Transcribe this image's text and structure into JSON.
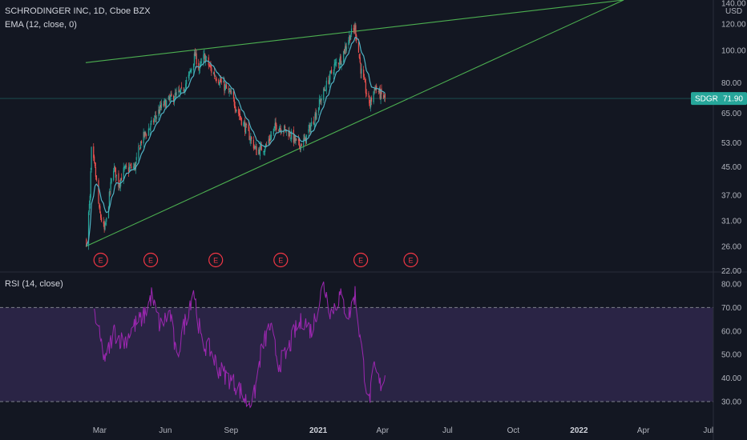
{
  "legend": {
    "title": "SCHRODINGER INC, 1D, Cboe BZX",
    "ema": "EMA (12, close, 0)",
    "rsi": "RSI (14, close)"
  },
  "price_axis": {
    "unit": "USD",
    "ticks": [
      140,
      120,
      100,
      80,
      65,
      53,
      45,
      37,
      31,
      26,
      22
    ],
    "tick_labels": [
      "140.00",
      "120.00",
      "100.00",
      "80.00",
      "65.00",
      "53.00",
      "45.00",
      "37.00",
      "31.00",
      "26.00",
      "22.00"
    ]
  },
  "rsi_axis": {
    "ticks": [
      80,
      70,
      60,
      50,
      40,
      30
    ],
    "tick_labels": [
      "80.00",
      "70.00",
      "60.00",
      "50.00",
      "40.00",
      "30.00"
    ],
    "band": [
      30,
      70
    ]
  },
  "time_axis": {
    "labels": [
      "Mar",
      "Jun",
      "Sep",
      "2021",
      "Apr",
      "Jul",
      "Oct",
      "2022",
      "Apr",
      "Jul"
    ],
    "bold": [
      "2021",
      "2022"
    ]
  },
  "last_price": {
    "symbol": "SDGR",
    "value": "71.90",
    "color": "#26a69a"
  },
  "colors": {
    "background": "#131722",
    "up": "#26a69a",
    "down": "#ef5350",
    "ema": "#4fb3c4",
    "trendline": "#4caf50",
    "rsi_line": "#9c27b0",
    "rsi_band": "#7e57c2",
    "earnings": "#f23645"
  },
  "earnings_marker": "E",
  "chart_data": [
    {
      "type": "candlestick",
      "scale": "log",
      "ylim": [
        22,
        140
      ],
      "x_range": [
        "2020-02-06",
        "2022-07-15"
      ],
      "price_anchors": [
        [
          "2020-02-07",
          27
        ],
        [
          "2020-02-12",
          36
        ],
        [
          "2020-02-14",
          50
        ],
        [
          "2020-02-19",
          44
        ],
        [
          "2020-02-25",
          33
        ],
        [
          "2020-03-03",
          29
        ],
        [
          "2020-03-06",
          31
        ],
        [
          "2020-03-16",
          45
        ],
        [
          "2020-03-23",
          40
        ],
        [
          "2020-03-31",
          44
        ],
        [
          "2020-04-15",
          45
        ],
        [
          "2020-04-24",
          54
        ],
        [
          "2020-05-08",
          60
        ],
        [
          "2020-05-22",
          68
        ],
        [
          "2020-06-05",
          72
        ],
        [
          "2020-06-19",
          75
        ],
        [
          "2020-06-29",
          83
        ],
        [
          "2020-07-08",
          97
        ],
        [
          "2020-07-14",
          88
        ],
        [
          "2020-07-21",
          96
        ],
        [
          "2020-07-31",
          87
        ],
        [
          "2020-08-14",
          80
        ],
        [
          "2020-08-28",
          73
        ],
        [
          "2020-09-11",
          62
        ],
        [
          "2020-09-23",
          55
        ],
        [
          "2020-10-02",
          50
        ],
        [
          "2020-10-16",
          52
        ],
        [
          "2020-10-30",
          60
        ],
        [
          "2020-11-16",
          57
        ],
        [
          "2020-11-30",
          52
        ],
        [
          "2020-12-09",
          54
        ],
        [
          "2020-12-22",
          63
        ],
        [
          "2021-01-04",
          75
        ],
        [
          "2021-01-19",
          90
        ],
        [
          "2021-01-29",
          95
        ],
        [
          "2021-02-10",
          111
        ],
        [
          "2021-02-17",
          117
        ],
        [
          "2021-02-25",
          88
        ],
        [
          "2021-03-04",
          76
        ],
        [
          "2021-03-10",
          69
        ],
        [
          "2021-03-17",
          78
        ],
        [
          "2021-03-24",
          74
        ],
        [
          "2021-03-31",
          71.9
        ]
      ],
      "earnings_dates": [
        "2020-02-27",
        "2020-05-07",
        "2020-08-06",
        "2020-11-05",
        "2021-02-25",
        "2021-05-06"
      ],
      "trendlines": [
        {
          "from": [
            "2020-02-06",
            92
          ],
          "to": [
            "2022-02-28",
            140
          ]
        },
        {
          "from": [
            "2020-02-06",
            26
          ],
          "to": [
            "2022-02-28",
            140
          ]
        }
      ]
    },
    {
      "type": "line",
      "name": "RSI",
      "ylim": [
        25,
        82
      ],
      "anchors": [
        [
          "2020-02-18",
          68
        ],
        [
          "2020-02-27",
          55
        ],
        [
          "2020-03-05",
          47
        ],
        [
          "2020-03-16",
          60
        ],
        [
          "2020-03-30",
          55
        ],
        [
          "2020-04-13",
          62
        ],
        [
          "2020-04-27",
          66
        ],
        [
          "2020-05-08",
          75
        ],
        [
          "2020-05-20",
          62
        ],
        [
          "2020-06-03",
          68
        ],
        [
          "2020-06-12",
          48
        ],
        [
          "2020-06-24",
          64
        ],
        [
          "2020-07-06",
          78
        ],
        [
          "2020-07-17",
          55
        ],
        [
          "2020-07-29",
          52
        ],
        [
          "2020-08-10",
          44
        ],
        [
          "2020-08-24",
          40
        ],
        [
          "2020-09-07",
          36
        ],
        [
          "2020-09-18",
          30
        ],
        [
          "2020-09-28",
          31
        ],
        [
          "2020-10-09",
          52
        ],
        [
          "2020-10-21",
          62
        ],
        [
          "2020-11-02",
          46
        ],
        [
          "2020-11-13",
          50
        ],
        [
          "2020-11-25",
          60
        ],
        [
          "2020-12-07",
          65
        ],
        [
          "2020-12-18",
          60
        ],
        [
          "2021-01-04",
          80
        ],
        [
          "2021-01-14",
          68
        ],
        [
          "2021-01-27",
          75
        ],
        [
          "2021-02-08",
          66
        ],
        [
          "2021-02-17",
          76
        ],
        [
          "2021-02-26",
          52
        ],
        [
          "2021-03-08",
          29
        ],
        [
          "2021-03-16",
          44
        ],
        [
          "2021-03-24",
          37
        ],
        [
          "2021-03-31",
          41
        ]
      ]
    }
  ]
}
